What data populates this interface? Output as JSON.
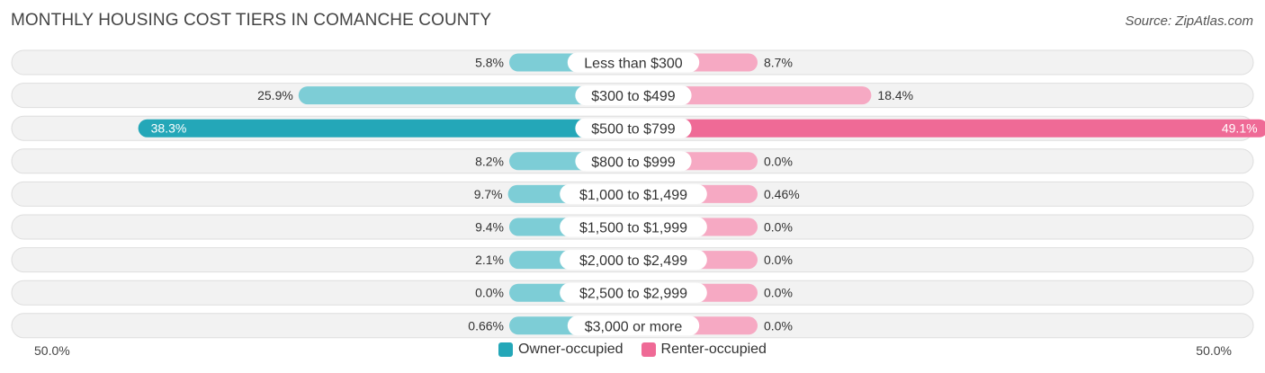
{
  "header": {
    "title": "MONTHLY HOUSING COST TIERS IN COMANCHE COUNTY",
    "source": "Source: ZipAtlas.com"
  },
  "colors": {
    "owner": "#24a7b8",
    "owner_light": "#7dcdd6",
    "renter": "#ef6a96",
    "renter_light": "#f6a9c3"
  },
  "chart_data": {
    "type": "bar",
    "orientation": "horizontal-diverging",
    "title": "MONTHLY HOUSING COST TIERS IN COMANCHE COUNTY",
    "categories": [
      "Less than $300",
      "$300 to $499",
      "$500 to $799",
      "$800 to $999",
      "$1,000 to $1,499",
      "$1,500 to $1,999",
      "$2,000 to $2,499",
      "$2,500 to $2,999",
      "$3,000 or more"
    ],
    "series": [
      {
        "name": "Owner-occupied",
        "values": [
          5.8,
          25.9,
          38.3,
          8.2,
          9.7,
          9.4,
          2.1,
          0.0,
          0.66
        ],
        "labels": [
          "5.8%",
          "25.9%",
          "38.3%",
          "8.2%",
          "9.7%",
          "9.4%",
          "2.1%",
          "0.0%",
          "0.66%"
        ]
      },
      {
        "name": "Renter-occupied",
        "values": [
          8.7,
          18.4,
          49.1,
          0.0,
          0.46,
          0.0,
          0.0,
          0.0,
          0.0
        ],
        "labels": [
          "8.7%",
          "18.4%",
          "49.1%",
          "0.0%",
          "0.46%",
          "0.0%",
          "0.0%",
          "0.0%",
          "0.0%"
        ]
      }
    ],
    "axis": {
      "min_label": "50.0%",
      "max_label": "50.0%",
      "range": [
        -50,
        50
      ]
    },
    "legend": [
      "Owner-occupied",
      "Renter-occupied"
    ],
    "legend_position": "bottom-center"
  }
}
